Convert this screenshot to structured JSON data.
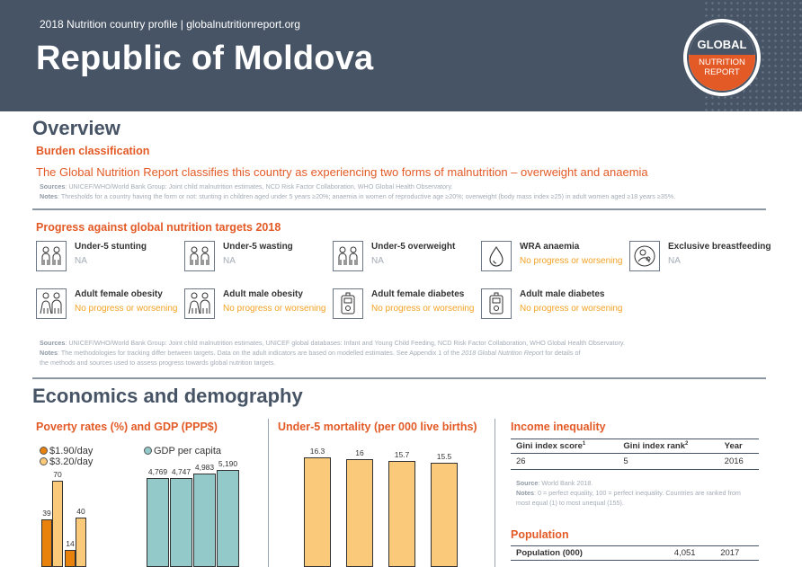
{
  "header": {
    "subtitle": "2018 Nutrition country profile  |  globalnutritionreport.org",
    "country": "Republic of Moldova",
    "logo": {
      "line1": "GLOBAL",
      "line2": "NUTRITION",
      "line3": "REPORT"
    }
  },
  "overview": {
    "title": "Overview",
    "burden_heading": "Burden classification",
    "burden_text": "The Global Nutrition Report classifies this country as experiencing two forms of malnutrition – overweight and anaemia",
    "sources_label": "Sources",
    "sources_text": ": UNICEF/WHO/World Bank Group: Joint child malnutrition estimates, NCD Risk Factor Collaboration, WHO Global Health Observatory.",
    "notes_label": "Notes",
    "notes_text": ": Thresholds for a country having the form or not: stunting in children aged under 5 years ≥20%; anaemia in women of reproductive age ≥20%; overweight (body mass index ≥25) in adult women aged ≥18 years ≥35%."
  },
  "progress": {
    "heading": "Progress against global nutrition targets 2018",
    "targets": [
      {
        "name": "Under-5 stunting",
        "status": "NA",
        "icon": "children-icon"
      },
      {
        "name": "Under-5 wasting",
        "status": "NA",
        "icon": "children-icon"
      },
      {
        "name": "Under-5 overweight",
        "status": "NA",
        "icon": "children-icon"
      },
      {
        "name": "WRA anaemia",
        "status": "No progress or worsening",
        "icon": "blood-drop-icon"
      },
      {
        "name": "Exclusive breastfeeding",
        "status": "NA",
        "icon": "breastfeeding-icon"
      },
      {
        "name": "Adult female obesity",
        "status": "No progress or worsening",
        "icon": "adults-icon"
      },
      {
        "name": "Adult male obesity",
        "status": "No progress or worsening",
        "icon": "adults-icon"
      },
      {
        "name": "Adult female diabetes",
        "status": "No progress or worsening",
        "icon": "glucose-meter-icon"
      },
      {
        "name": "Adult male diabetes",
        "status": "No progress or worsening",
        "icon": "glucose-meter-icon"
      }
    ],
    "sources_label": "Sources",
    "sources_text": ": UNICEF/WHO/World Bank Group: Joint child malnutrition estimates, UNICEF global databases: Infant and Young Child Feeding, NCD Risk Factor Collaboration, WHO Global Health Observatory.",
    "notes_label": "Notes",
    "notes_text_1": ": The methodologies for tracking differ between targets. Data on the adult indicators are based on modelled estimates. See Appendix 1 of the ",
    "notes_italic": "2018 Global Nutrition Report",
    "notes_text_2": " for details of",
    "notes_line2": "the methods and sources used to assess progress towards global nutrition targets."
  },
  "economics": {
    "title": "Economics and demography",
    "poverty_heading": "Poverty rates (%) and GDP (PPP$)",
    "mortality_heading": "Under-5 mortality (per 000 live births)",
    "income_heading": "Income inequality",
    "income_table": {
      "headers": [
        "Gini index score",
        "Gini index rank",
        "Year"
      ],
      "header_sups": [
        "1",
        "2",
        ""
      ],
      "row": [
        "26",
        "5",
        "2016"
      ]
    },
    "income_source_label": "Source",
    "income_source_text": ": World Bank 2018.",
    "income_notes_label": "Notes",
    "income_notes_text": ": 0 = perfect equality, 100 = perfect inequality. Countries are ranked from most equal (1) to most unequal (155).",
    "population_heading": "Population",
    "population_row": {
      "label": "Population (000)",
      "value": "4,051",
      "year": "2017"
    }
  },
  "colors": {
    "navy": "#475465",
    "orange": "#e35a26",
    "dark_orange": "#e8820c",
    "light_orange": "#fbc97a",
    "teal": "#93c9c9"
  },
  "chart_data": [
    {
      "type": "bar",
      "title": "Poverty rates (%) and GDP (PPP$)",
      "series": [
        {
          "name": "$1.90/day",
          "values": [
            39,
            14
          ]
        },
        {
          "name": "$3.20/day",
          "values": [
            70,
            40
          ]
        }
      ],
      "categories": [
        "",
        ""
      ]
    },
    {
      "type": "bar",
      "series": [
        {
          "name": "GDP per capita",
          "values": [
            4769,
            4747,
            4983,
            5190
          ]
        }
      ],
      "categories": [
        "",
        "",
        "",
        ""
      ],
      "labels": [
        "4,769",
        "4,747",
        "4,983",
        "5,190"
      ]
    },
    {
      "type": "bar",
      "title": "Under-5 mortality (per 000 live births)",
      "values": [
        16.3,
        16,
        15.7,
        15.5
      ],
      "labels": [
        "16.3",
        "16",
        "15.7",
        "15.5"
      ],
      "categories": [
        "",
        "",
        "",
        ""
      ]
    }
  ]
}
